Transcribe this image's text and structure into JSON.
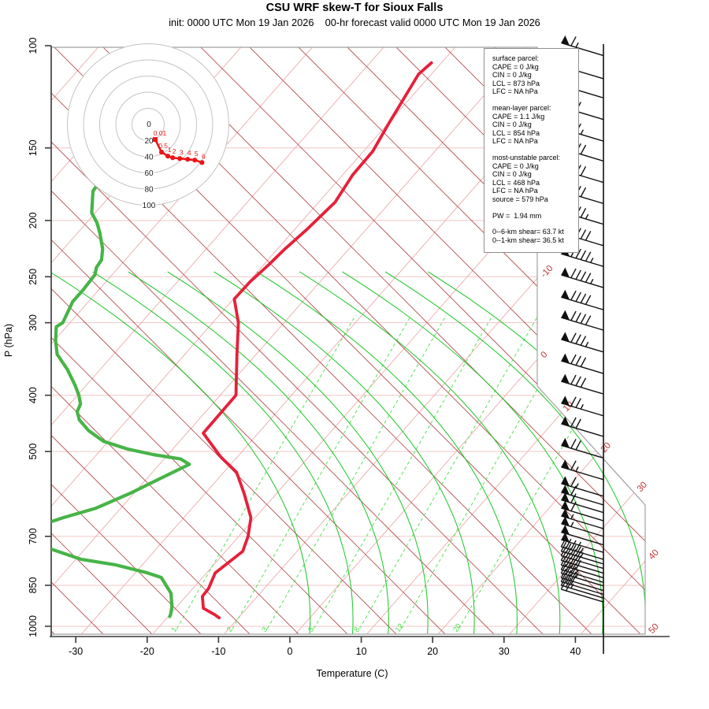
{
  "title": "CSU WRF skew-T for Sioux Falls",
  "subtitle": "init: 0000 UTC Mon 19 Jan 2026    00-hr forecast valid 0000 UTC Mon 19 Jan 2026",
  "axes": {
    "x_label": "Temperature (C)",
    "y_label": "P (hPa)",
    "pressure_ticks": [
      100,
      150,
      200,
      250,
      300,
      400,
      500,
      700,
      850,
      1000
    ],
    "temperature_ticks": [
      -30,
      -20,
      -10,
      0,
      10,
      20,
      30,
      40
    ]
  },
  "info_box": {
    "sections": [
      {
        "lines": [
          "surface parcel:",
          "CAPE = 0 J/kg",
          "CIN = 0 J/kg",
          "LCL = 873 hPa",
          "LFC = NA hPa"
        ]
      },
      {
        "lines": [
          "mean-layer parcel:",
          "CAPE = 1.1 J/kg",
          "CIN = 0 J/kg",
          "LCL = 854 hPa",
          "LFC = NA hPa"
        ]
      },
      {
        "lines": [
          "most-unstable parcel:",
          "CAPE = 0 J/kg",
          "CIN = 0 J/kg",
          "LCL = 468 hPa",
          "LFC = NA hPa",
          "source = 579 hPa"
        ]
      },
      {
        "lines": [
          "PW =  1.94 mm"
        ]
      },
      {
        "lines": [
          "0--6-km shear= 63.7 kt",
          "0--1-km shear= 36.5 kt"
        ]
      }
    ]
  },
  "chart_data": {
    "type": "skewt",
    "title": "CSU WRF skew-T for Sioux Falls",
    "xlabel": "Temperature (C)",
    "ylabel": "P (hPa)",
    "pressure_range_hPa": [
      100,
      1050
    ],
    "temperature_axis_C": [
      -35,
      45
    ],
    "isotherm_labels_C": [
      -10,
      0,
      10,
      20,
      30,
      40,
      50
    ],
    "mixing_ratio_labels_gkg": [
      1,
      2,
      3,
      5,
      8,
      12,
      20
    ],
    "mixing_ratio_dewpoints_at_1000hPa_C": [
      -17.3,
      -9.5,
      -4.6,
      1.9,
      8.3,
      14.1,
      22.2
    ],
    "moist_adiabat_surface_temps_C": [
      2,
      8,
      13,
      18.5,
      25,
      31,
      37,
      43,
      49,
      55
    ],
    "temperature_trace_pT": [
      [
        107,
        -51.4
      ],
      [
        112,
        -51.8
      ],
      [
        136,
        -49.9
      ],
      [
        152,
        -48.7
      ],
      [
        167,
        -48.6
      ],
      [
        186,
        -47.7
      ],
      [
        207,
        -48.3
      ],
      [
        225,
        -49.0
      ],
      [
        239,
        -49.3
      ],
      [
        255,
        -49.8
      ],
      [
        273,
        -49.9
      ],
      [
        300,
        -46.4
      ],
      [
        340,
        -42.7
      ],
      [
        400,
        -37.8
      ],
      [
        465,
        -37.7
      ],
      [
        511,
        -32.3
      ],
      [
        543,
        -28.2
      ],
      [
        591,
        -24.5
      ],
      [
        650,
        -20.6
      ],
      [
        700,
        -18.7
      ],
      [
        743,
        -17.6
      ],
      [
        809,
        -18.8
      ],
      [
        861,
        -17.8
      ],
      [
        888,
        -17.7
      ],
      [
        931,
        -16.1
      ],
      [
        955,
        -13.7
      ],
      [
        967,
        -12.7
      ]
    ],
    "dewpoint_trace_pT": [
      [
        172,
        -83.2
      ],
      [
        178,
        -83.0
      ],
      [
        194,
        -80.5
      ],
      [
        202,
        -78.5
      ],
      [
        210,
        -76.9
      ],
      [
        224,
        -74.5
      ],
      [
        234,
        -73.3
      ],
      [
        241,
        -73.1
      ],
      [
        248,
        -72.4
      ],
      [
        263,
        -72.2
      ],
      [
        276,
        -72.2
      ],
      [
        300,
        -71.0
      ],
      [
        305,
        -71.4
      ],
      [
        322,
        -69.8
      ],
      [
        340,
        -67.9
      ],
      [
        361,
        -64.6
      ],
      [
        385,
        -61.5
      ],
      [
        400,
        -59.8
      ],
      [
        414,
        -58.5
      ],
      [
        427,
        -58.0
      ],
      [
        441,
        -56.7
      ],
      [
        460,
        -54.1
      ],
      [
        480,
        -50.7
      ],
      [
        495,
        -46.4
      ],
      [
        506,
        -42.1
      ],
      [
        515,
        -37.7
      ],
      [
        526,
        -35.8
      ],
      [
        559,
        -38.3
      ],
      [
        591,
        -40.6
      ],
      [
        626,
        -43.5
      ],
      [
        650,
        -46.9
      ],
      [
        663,
        -48.4
      ],
      [
        731,
        -45.7
      ],
      [
        767,
        -39.2
      ],
      [
        784,
        -33.7
      ],
      [
        809,
        -28.3
      ],
      [
        824,
        -25.8
      ],
      [
        877,
        -22.5
      ],
      [
        925,
        -20.7
      ],
      [
        955,
        -19.9
      ],
      [
        962,
        -19.8
      ]
    ],
    "wind_barbs_p_kt": [
      [
        104,
        65
      ],
      [
        114,
        60
      ],
      [
        123,
        65
      ],
      [
        134,
        70
      ],
      [
        146,
        75
      ],
      [
        158,
        80
      ],
      [
        172,
        80
      ],
      [
        187,
        80
      ],
      [
        203,
        85
      ],
      [
        221,
        90
      ],
      [
        240,
        95
      ],
      [
        261,
        95
      ],
      [
        285,
        90
      ],
      [
        309,
        90
      ],
      [
        337,
        85
      ],
      [
        367,
        80
      ],
      [
        398,
        80
      ],
      [
        434,
        75
      ],
      [
        471,
        70
      ],
      [
        513,
        70
      ],
      [
        559,
        65
      ],
      [
        597,
        65
      ],
      [
        618,
        60
      ],
      [
        637,
        60
      ],
      [
        658,
        60
      ],
      [
        679,
        55
      ],
      [
        700,
        55
      ],
      [
        724,
        50
      ],
      [
        746,
        50
      ],
      [
        767,
        45
      ],
      [
        781,
        45
      ],
      [
        795,
        40
      ],
      [
        810,
        40
      ],
      [
        825,
        40
      ],
      [
        840,
        35
      ],
      [
        852,
        35
      ],
      [
        868,
        30
      ],
      [
        881,
        30
      ],
      [
        894,
        25
      ],
      [
        908,
        20
      ]
    ],
    "hodograph": {
      "ring_labels_kt": [
        0,
        20,
        40,
        60,
        80,
        100
      ],
      "point_labels_km": [
        "0.01",
        "0.5",
        "1",
        "2",
        "3",
        "4",
        "5",
        "6"
      ],
      "trace_uv_kt": [
        [
          8.8,
          -18.6
        ],
        [
          16.7,
          -34.3
        ],
        [
          24.5,
          -39.2
        ],
        [
          30.4,
          -41.2
        ],
        [
          39.2,
          -42.2
        ],
        [
          49.0,
          -43.1
        ],
        [
          57.8,
          -44.1
        ],
        [
          66.7,
          -47.1
        ]
      ]
    },
    "colors": {
      "temperature": "#e62039",
      "dewpoint": "#47b447",
      "dry_adiabat": "#b04545",
      "isotherm": "#ecabab",
      "pressure_line": "#f3c6c6",
      "moist_adiabat": "#17c421",
      "mixing_ratio": "#4be04b",
      "isotherm_label": "#c03535",
      "frame": "#a0a0a0",
      "axis": "#3a3a3a",
      "barb": "#101010",
      "hodo_ring": "#c4c4c4",
      "hodo_trace": "#ee1414"
    }
  }
}
